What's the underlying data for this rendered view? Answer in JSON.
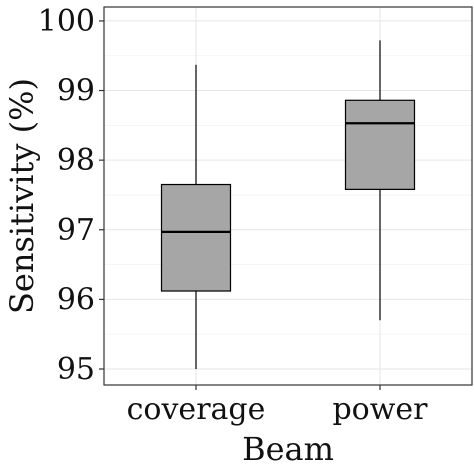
{
  "chart_data": {
    "type": "box",
    "xlabel": "Beam",
    "ylabel": "Sensitivity (%)",
    "categories": [
      "coverage",
      "power"
    ],
    "boxes": [
      {
        "category": "coverage",
        "min": 95.0,
        "q1": 96.12,
        "median": 96.97,
        "q3": 97.65,
        "max": 99.37
      },
      {
        "category": "power",
        "min": 95.7,
        "q1": 97.58,
        "median": 98.53,
        "q3": 98.86,
        "max": 99.72
      }
    ],
    "ylim": [
      94.77,
      100.2
    ],
    "yticks": [
      95,
      96,
      97,
      98,
      99,
      100
    ],
    "grid": true,
    "legend": "none",
    "colors": {
      "box_fill": "#a6a6a6",
      "grid": "#e6e6e6",
      "line": "#000000"
    }
  }
}
